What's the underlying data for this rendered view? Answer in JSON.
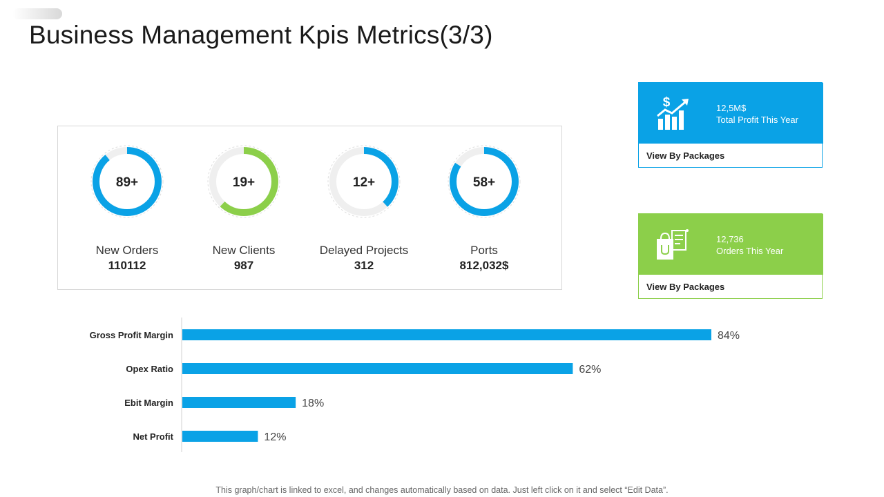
{
  "title": "Business Management Kpis Metrics(3/3)",
  "kpis": [
    {
      "center": "89+",
      "label": "New Orders",
      "value": "110112",
      "percent": 89,
      "color": "#0aa2e6"
    },
    {
      "center": "19+",
      "label": "New Clients",
      "value": "987",
      "percent": 62,
      "color": "#8ccf4a"
    },
    {
      "center": "12+",
      "label": "Delayed Projects",
      "value": "312",
      "percent": 38,
      "color": "#0aa2e6"
    },
    {
      "center": "58+",
      "label": "Ports",
      "value": "812,032$",
      "percent": 84,
      "color": "#0aa2e6"
    }
  ],
  "cards": [
    {
      "icon": "profit-growth-icon",
      "amount": "12,5M$",
      "caption": "Total Profit This Year",
      "link": "View By Packages",
      "color": "#0aa2e6"
    },
    {
      "icon": "shopping-bag-icon",
      "amount": "12,736",
      "caption": "Orders This Year",
      "link": "View By Packages",
      "color": "#8ccf4a"
    }
  ],
  "chart_data": {
    "type": "bar",
    "orientation": "horizontal",
    "categories": [
      "Gross Profit Margin",
      "Opex Ratio",
      "Ebit Margin",
      "Net Profit"
    ],
    "values": [
      84,
      62,
      18,
      12
    ],
    "value_labels": [
      "84%",
      "62%",
      "18%",
      "12%"
    ],
    "xlim": [
      0,
      100
    ],
    "color": "#0aa2e6",
    "title": "",
    "xlabel": "",
    "ylabel": ""
  },
  "footnote": "This graph/chart is linked to excel, and changes automatically based on data. Just left click on it and select “Edit Data”."
}
